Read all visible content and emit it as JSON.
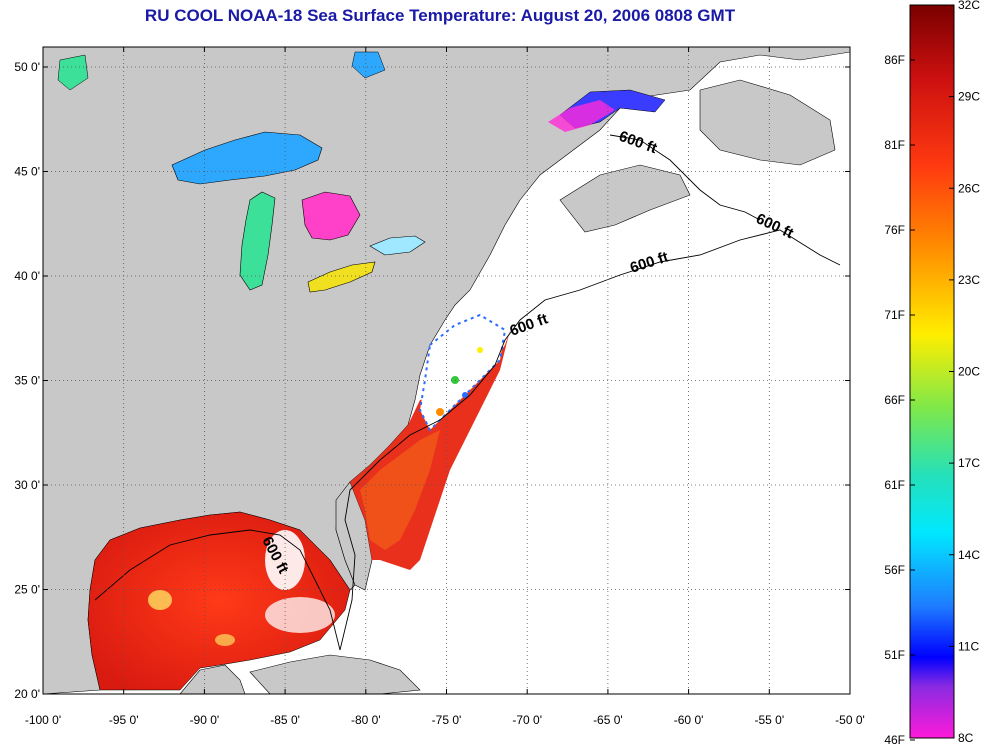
{
  "title": "RU COOL  NOAA-18  Sea Surface Temperature:  August 20, 2006 0808 GMT",
  "title_color": "#1a1aa6",
  "lat_labels": [
    "50 0'",
    "45 0'",
    "40 0'",
    "35 0'",
    "30 0'",
    "25 0'",
    "20 0'"
  ],
  "lon_labels": [
    "-100 0'",
    "-95 0'",
    "-90 0'",
    "-85 0'",
    "-80 0'",
    "-75 0'",
    "-70 0'",
    "-65 0'",
    "-60 0'",
    "-55 0'",
    "-50 0'"
  ],
  "contour_label": "600 ft",
  "colorbar": {
    "fahrenheit_labels": [
      "86F",
      "81F",
      "76F",
      "71F",
      "66F",
      "61F",
      "56F",
      "51F",
      "46F"
    ],
    "celsius_labels": [
      "32C",
      "29C",
      "26C",
      "23C",
      "20C",
      "17C",
      "14C",
      "11C",
      "8C"
    ]
  },
  "colors": {
    "land": "#c8c8c8",
    "ocean_nodata": "#ffffff",
    "warm_sst": "#e8301c",
    "cool_sst": "#2d6cff"
  }
}
